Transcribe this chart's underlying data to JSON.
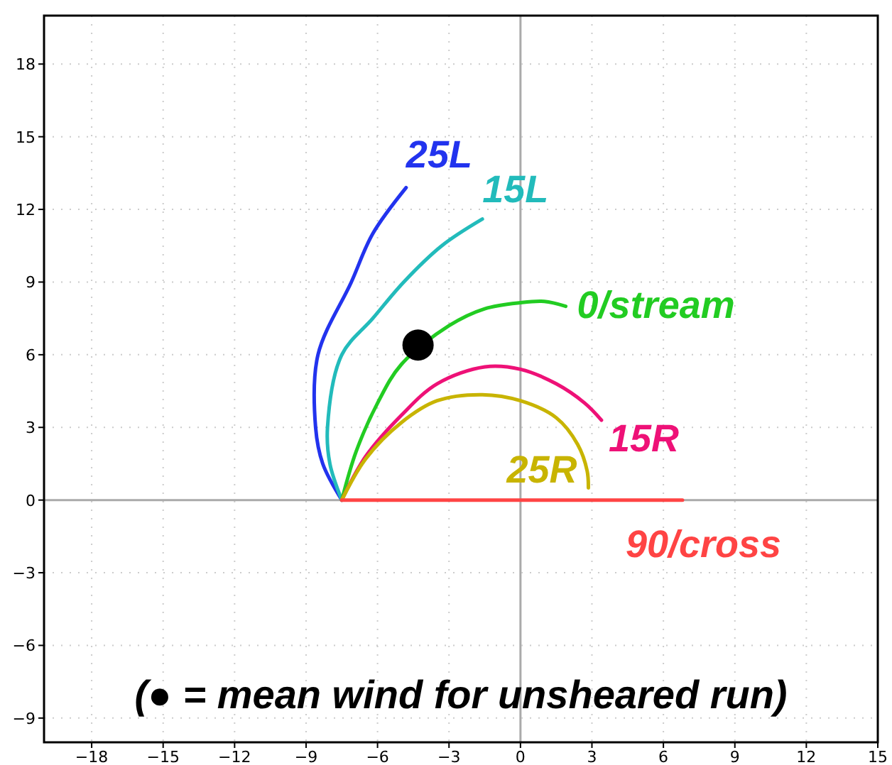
{
  "chart_data": {
    "type": "line",
    "xlim": [
      -20,
      15
    ],
    "ylim": [
      -10,
      20
    ],
    "xticks": [
      -18,
      -15,
      -12,
      -9,
      -6,
      -3,
      0,
      3,
      6,
      9,
      12,
      15
    ],
    "yticks": [
      -9,
      -6,
      -3,
      0,
      3,
      6,
      9,
      12,
      15,
      18
    ],
    "grid": true,
    "marker": "none",
    "line_style": "solid",
    "series": [
      {
        "name": "25L",
        "color": "#2233ee",
        "x": [
          -7.5,
          -8.3,
          -8.6,
          -8.5,
          -7.1,
          -6.2,
          -4.8
        ],
        "values": [
          0,
          1.5,
          3,
          6,
          9,
          11,
          12.9
        ]
      },
      {
        "name": "15L",
        "color": "#22bbbb",
        "x": [
          -7.5,
          -8.0,
          -8.1,
          -7.5,
          -6.2,
          -4.9,
          -3.3,
          -1.6
        ],
        "values": [
          0,
          1.5,
          3,
          6,
          7.5,
          9,
          10.5,
          11.6
        ]
      },
      {
        "name": "0/stream",
        "color": "#22cc22",
        "x": [
          -7.5,
          -6.9,
          -6.0,
          -5.0,
          -3,
          -1.5,
          0,
          1,
          1.9
        ],
        "values": [
          0,
          2,
          4,
          5.6,
          7.2,
          7.9,
          8.15,
          8.2,
          8.0
        ]
      },
      {
        "name": "15R",
        "color": "#ee1177",
        "x": [
          -7.5,
          -6.5,
          -5,
          -3.5,
          -1.5,
          0,
          1.5,
          2.7,
          3.4
        ],
        "values": [
          0,
          1.8,
          3.5,
          4.8,
          5.5,
          5.4,
          4.8,
          4,
          3.3
        ]
      },
      {
        "name": "25R",
        "color": "#c8b400",
        "x": [
          -7.5,
          -6.5,
          -5,
          -3.5,
          -1.6,
          0,
          1.5,
          2.4,
          2.8,
          2.85
        ],
        "values": [
          0,
          1.7,
          3.2,
          4.1,
          4.35,
          4.1,
          3.4,
          2.3,
          1.2,
          0.5
        ]
      },
      {
        "name": "90/cross",
        "color": "#ff4444",
        "x": [
          -7.5,
          6.8
        ],
        "values": [
          0,
          0
        ]
      },
      {
        "type": "scatter",
        "marker": "circle",
        "color": "#000000",
        "x": [
          -4.3
        ],
        "values": [
          6.4
        ]
      }
    ],
    "annotations": [
      "(● = mean wind for unsheared run)"
    ]
  }
}
